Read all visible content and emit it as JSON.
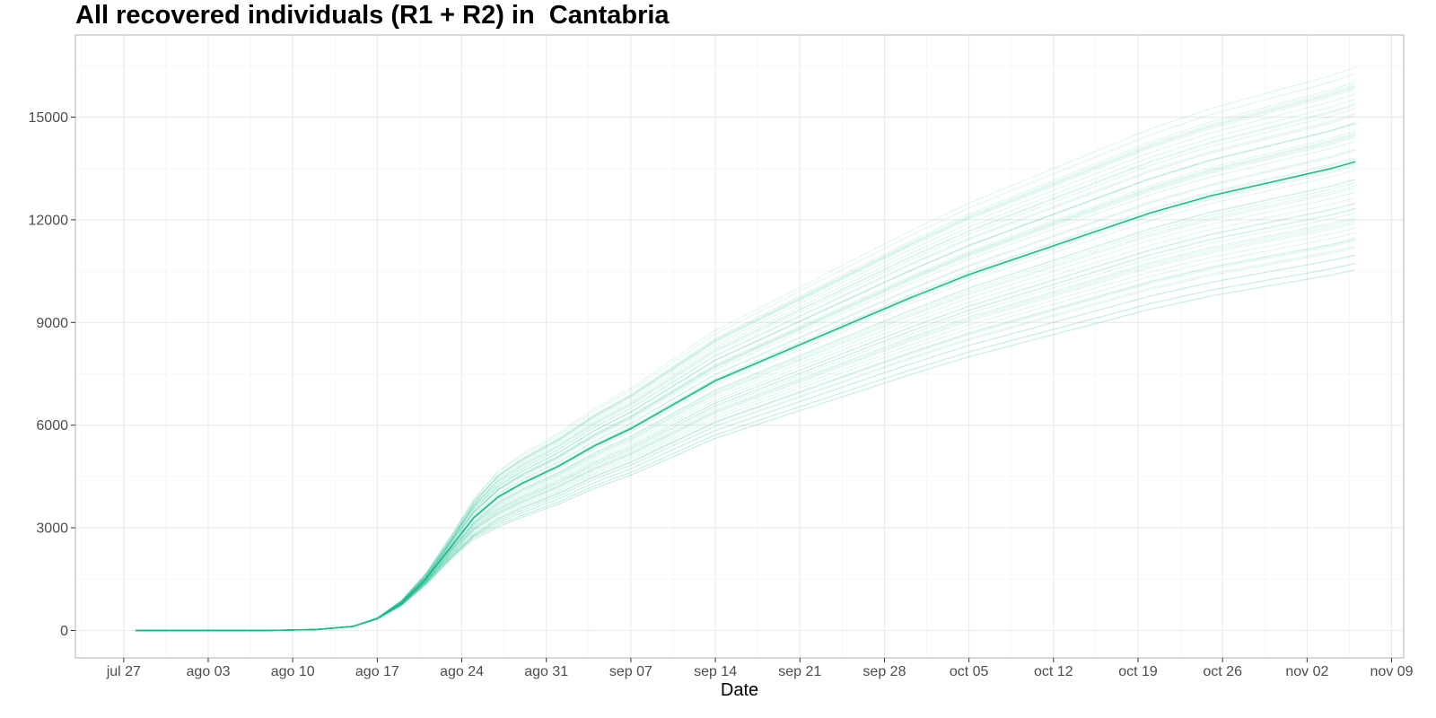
{
  "chart_data": {
    "type": "line",
    "title": "All recovered individuals (R1 + R2) in  Cantabria",
    "xlabel": "Date",
    "ylabel": "",
    "x_ticks": [
      "jul 27",
      "ago 03",
      "ago 10",
      "ago 17",
      "ago 24",
      "ago 31",
      "sep 07",
      "sep 14",
      "sep 21",
      "sep 28",
      "oct 05",
      "oct 12",
      "oct 19",
      "oct 26",
      "nov 02",
      "nov 09"
    ],
    "y_ticks": [
      0,
      3000,
      6000,
      9000,
      12000,
      15000
    ],
    "xlim": [
      "2020-07-23",
      "2020-11-10"
    ],
    "ylim": [
      -800,
      17400
    ],
    "grid": true,
    "legend": "none",
    "series_color": "#1abc8c",
    "central_series": {
      "x": [
        "2020-07-28",
        "2020-08-08",
        "2020-08-12",
        "2020-08-15",
        "2020-08-17",
        "2020-08-19",
        "2020-08-21",
        "2020-08-23",
        "2020-08-25",
        "2020-08-27",
        "2020-08-29",
        "2020-09-01",
        "2020-09-04",
        "2020-09-07",
        "2020-09-10",
        "2020-09-14",
        "2020-09-18",
        "2020-09-22",
        "2020-09-26",
        "2020-09-30",
        "2020-10-05",
        "2020-10-10",
        "2020-10-15",
        "2020-10-20",
        "2020-10-25",
        "2020-10-30",
        "2020-11-04",
        "2020-11-06"
      ],
      "y": [
        0,
        0,
        30,
        120,
        350,
        800,
        1500,
        2400,
        3300,
        3900,
        4300,
        4800,
        5400,
        5900,
        6500,
        7300,
        7900,
        8500,
        9100,
        9700,
        10400,
        11000,
        11600,
        12200,
        12700,
        13100,
        13500,
        13700
      ]
    },
    "ensemble": {
      "count": 60,
      "end_min": 10500,
      "end_max": 16400
    }
  }
}
